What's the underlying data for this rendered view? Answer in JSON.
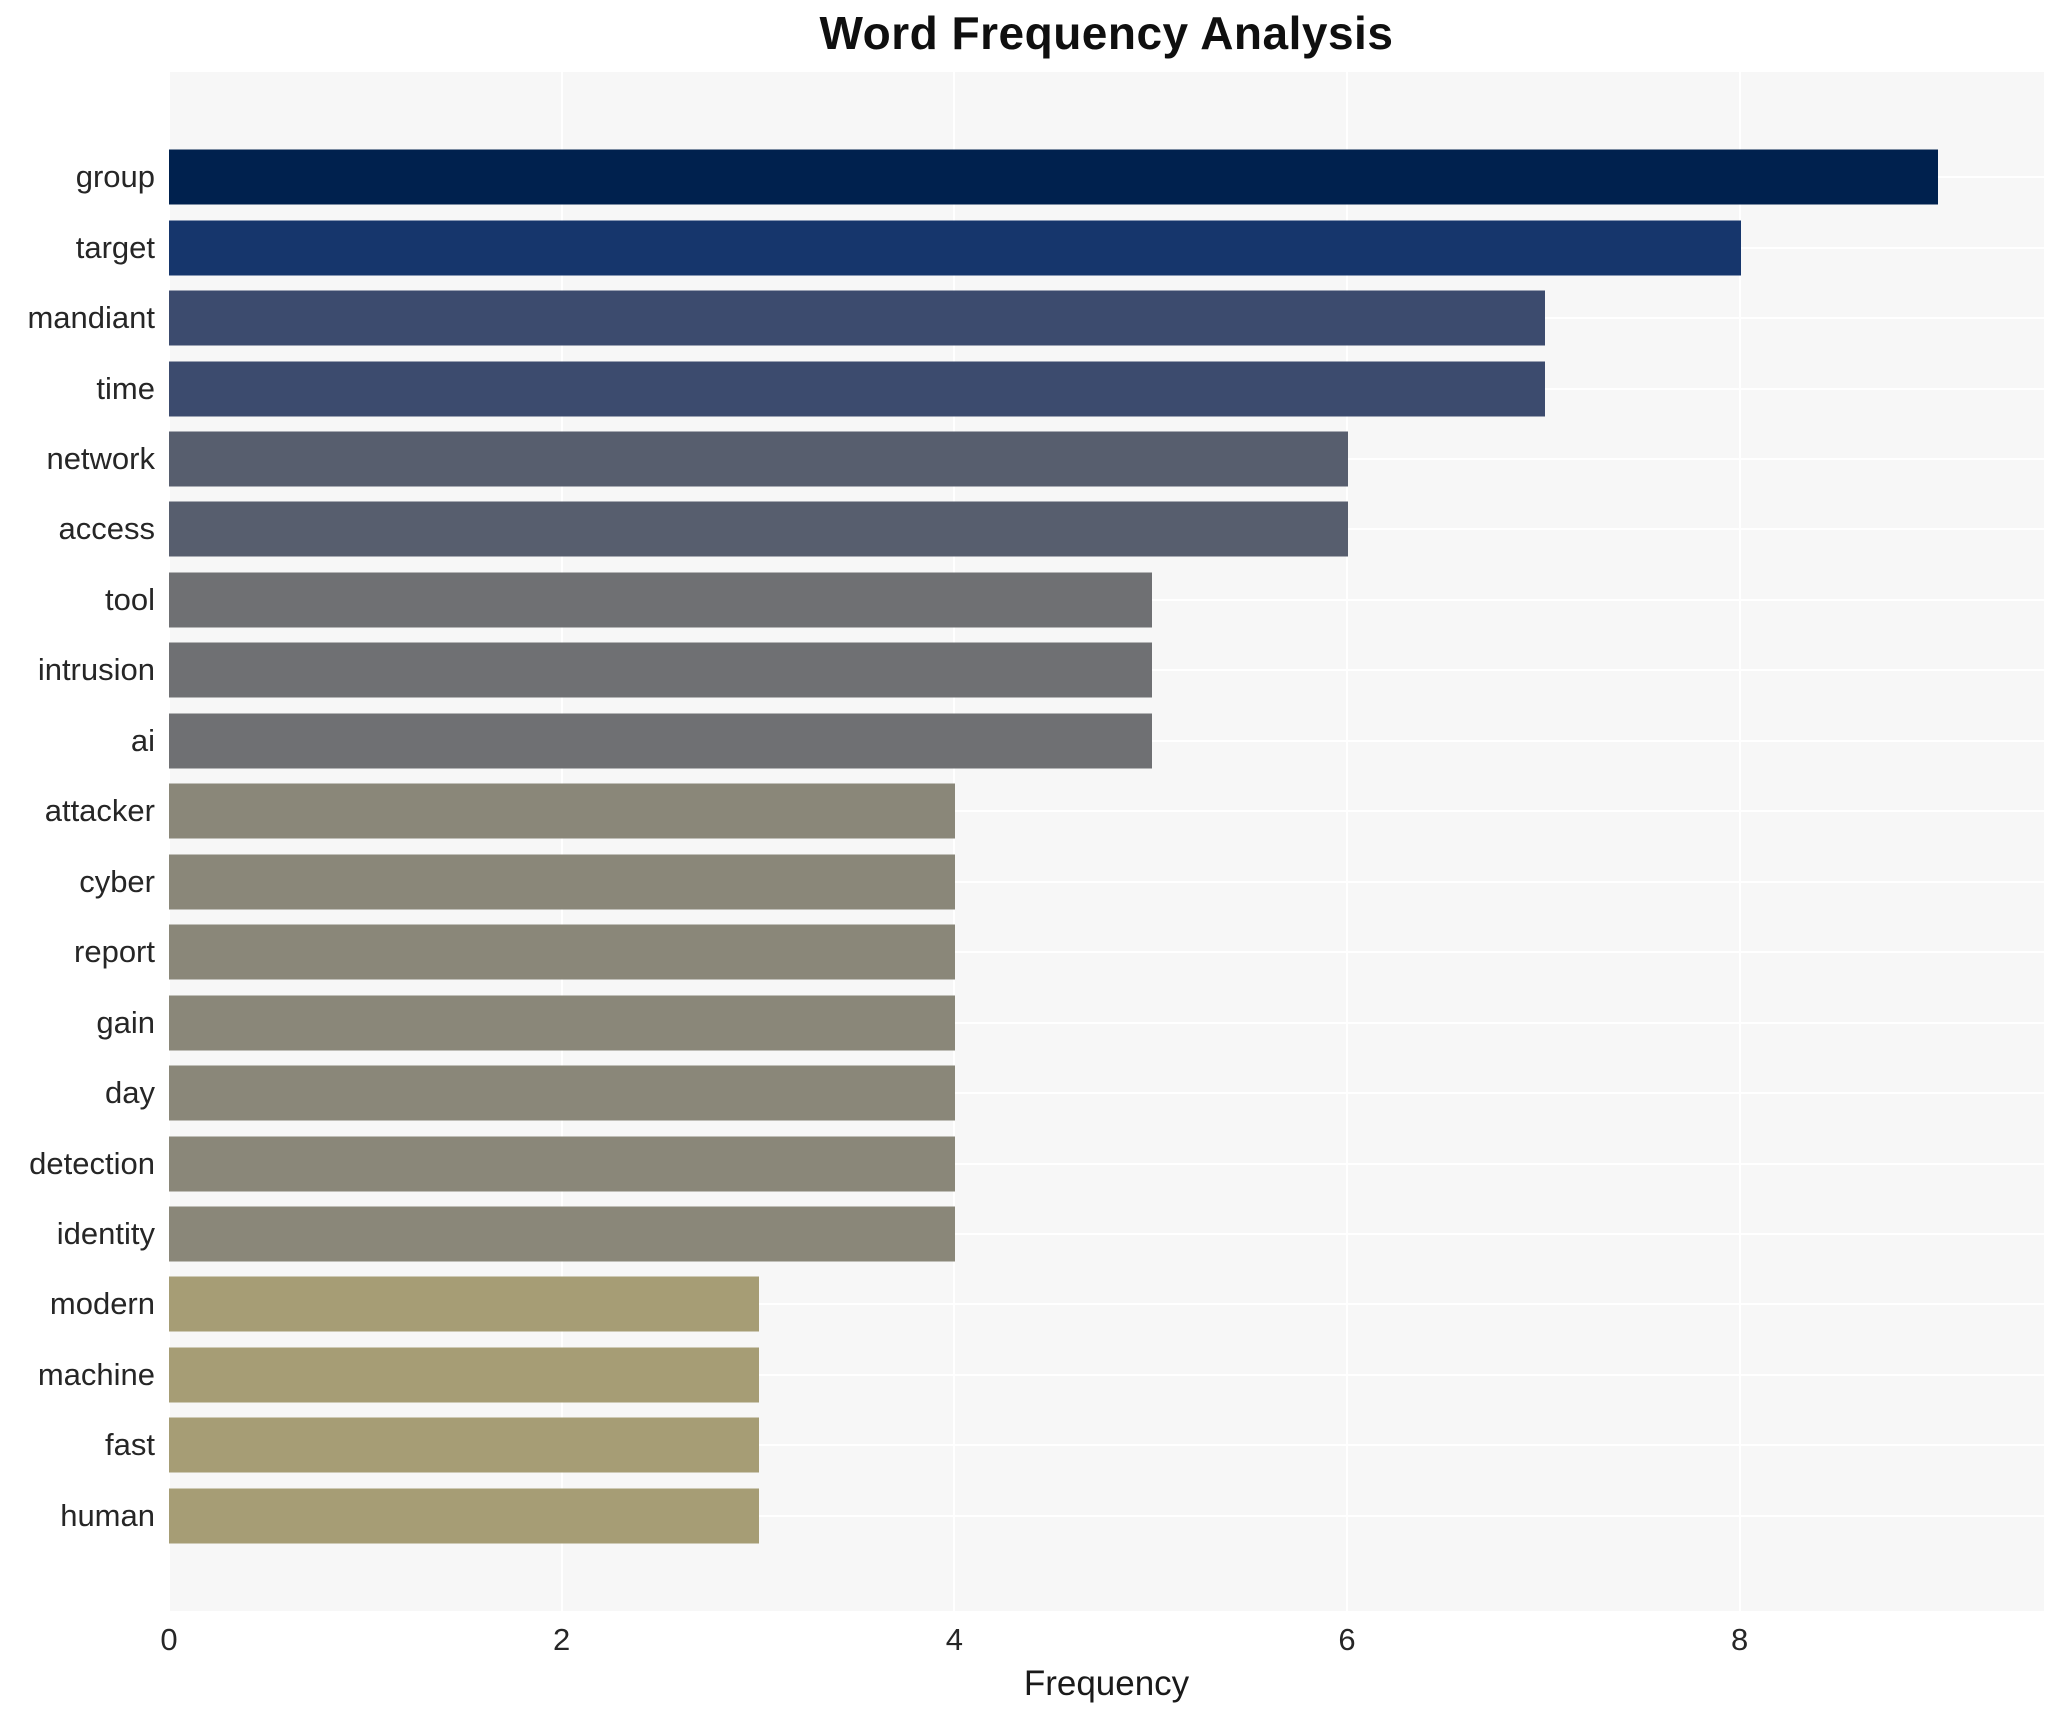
{
  "chart_data": {
    "type": "bar",
    "orientation": "horizontal",
    "title": "Word Frequency Analysis",
    "xlabel": "Frequency",
    "ylabel": "",
    "categories": [
      "group",
      "target",
      "mandiant",
      "time",
      "network",
      "access",
      "tool",
      "intrusion",
      "ai",
      "attacker",
      "cyber",
      "report",
      "gain",
      "day",
      "detection",
      "identity",
      "modern",
      "machine",
      "fast",
      "human"
    ],
    "values": [
      9,
      8,
      7,
      7,
      6,
      6,
      5,
      5,
      5,
      4,
      4,
      4,
      4,
      4,
      4,
      4,
      3,
      3,
      3,
      3
    ],
    "bar_colors": [
      "#00214e",
      "#16366c",
      "#3c4b6e",
      "#3c4b6e",
      "#575e6e",
      "#575e6e",
      "#6f7073",
      "#6f7073",
      "#6f7073",
      "#8a8779",
      "#8a8779",
      "#8a8779",
      "#8a8779",
      "#8a8779",
      "#8a8779",
      "#8a8779",
      "#a69d75",
      "#a69d75",
      "#a69d75",
      "#a69d75"
    ],
    "colormap": "cividis",
    "xticks": [
      0,
      2,
      4,
      6,
      8
    ],
    "xlim": [
      0,
      9.55
    ],
    "grid": true,
    "grid_color": "#ffffff",
    "plot_background": "#f7f7f7",
    "figure_background": "#ffffff",
    "legend": false
  }
}
